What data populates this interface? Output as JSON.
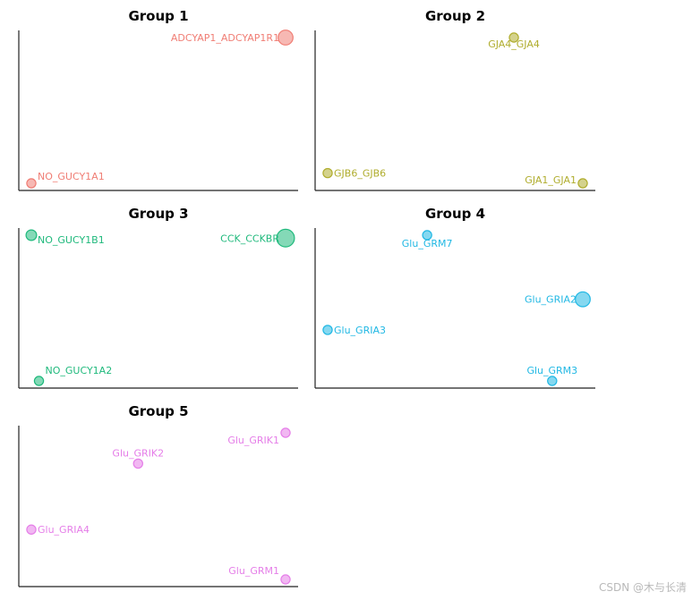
{
  "watermark": "CSDN @木与长清",
  "chart_data": [
    {
      "type": "scatter",
      "title": "Group 1",
      "color": "#f07d74",
      "points": [
        {
          "label": "ADCYAP1_ADCYAP1R1",
          "x": 1.0,
          "y": 1.0,
          "size": 3
        },
        {
          "label": "NO_GUCY1A1",
          "x": 0.0,
          "y": 0.0,
          "size": 1
        }
      ]
    },
    {
      "type": "scatter",
      "title": "Group 2",
      "color": "#b0ad2e",
      "points": [
        {
          "label": "GJA4_GJA4",
          "x": 0.73,
          "y": 1.0,
          "size": 1
        },
        {
          "label": "GJB6_GJB6",
          "x": 0.0,
          "y": 0.07,
          "size": 1
        },
        {
          "label": "GJA1_GJA1",
          "x": 1.0,
          "y": 0.0,
          "size": 1
        }
      ]
    },
    {
      "type": "scatter",
      "title": "Group 3",
      "color": "#1fb97c",
      "points": [
        {
          "label": "NO_GUCY1B1",
          "x": 0.0,
          "y": 1.0,
          "size": 1.5
        },
        {
          "label": "CCK_CCKBR",
          "x": 1.0,
          "y": 0.98,
          "size": 4
        },
        {
          "label": "NO_GUCY1A2",
          "x": 0.03,
          "y": 0.0,
          "size": 1
        }
      ]
    },
    {
      "type": "scatter",
      "title": "Group 4",
      "color": "#21b8e4",
      "points": [
        {
          "label": "Glu_GRM7",
          "x": 0.39,
          "y": 1.0,
          "size": 1
        },
        {
          "label": "Glu_GRIA2",
          "x": 1.0,
          "y": 0.56,
          "size": 3
        },
        {
          "label": "Glu_GRIA3",
          "x": 0.0,
          "y": 0.35,
          "size": 1
        },
        {
          "label": "Glu_GRM3",
          "x": 0.88,
          "y": 0.0,
          "size": 1
        }
      ]
    },
    {
      "type": "scatter",
      "title": "Group 5",
      "color": "#e57ee8",
      "points": [
        {
          "label": "Glu_GRIK1",
          "x": 1.0,
          "y": 1.0,
          "size": 1
        },
        {
          "label": "Glu_GRIK2",
          "x": 0.42,
          "y": 0.79,
          "size": 1
        },
        {
          "label": "Glu_GRIA4",
          "x": 0.0,
          "y": 0.34,
          "size": 1
        },
        {
          "label": "Glu_GRM1",
          "x": 1.0,
          "y": 0.0,
          "size": 1
        }
      ]
    }
  ]
}
